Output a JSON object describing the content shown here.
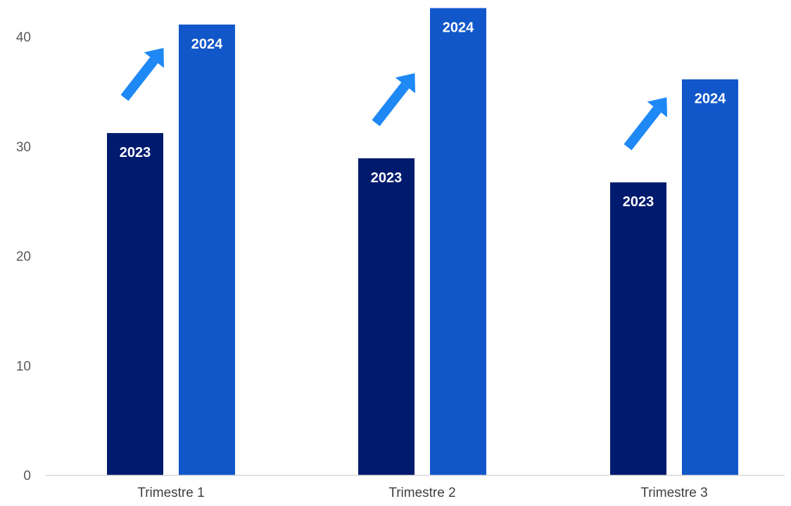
{
  "chart_data": {
    "type": "bar",
    "categories": [
      "Trimestre 1",
      "Trimestre 2",
      "Trimestre 3"
    ],
    "series": [
      {
        "label": "2023",
        "color": "#001A6E",
        "values": [
          31.2,
          28.9,
          26.7
        ]
      },
      {
        "label": "2024",
        "color": "#1157C9",
        "values": [
          41.1,
          42.6,
          36.1
        ]
      }
    ],
    "yticks": [
      0,
      10,
      20,
      30,
      40
    ],
    "ylim": [
      0,
      40.3
    ],
    "grid": false,
    "title": "",
    "xlabel": "",
    "ylabel": "",
    "annotations": [
      {
        "type": "arrow-up-right",
        "icon": "arrow-up-right-icon",
        "color": "#1E88F5",
        "category": "Trimestre 1"
      },
      {
        "type": "arrow-up-right",
        "icon": "arrow-up-right-icon",
        "color": "#1E88F5",
        "category": "Trimestre 2"
      },
      {
        "type": "arrow-up-right",
        "icon": "arrow-up-right-icon",
        "color": "#1E88F5",
        "category": "Trimestre 3"
      }
    ],
    "axis_line_color": "#D9D9D9"
  }
}
